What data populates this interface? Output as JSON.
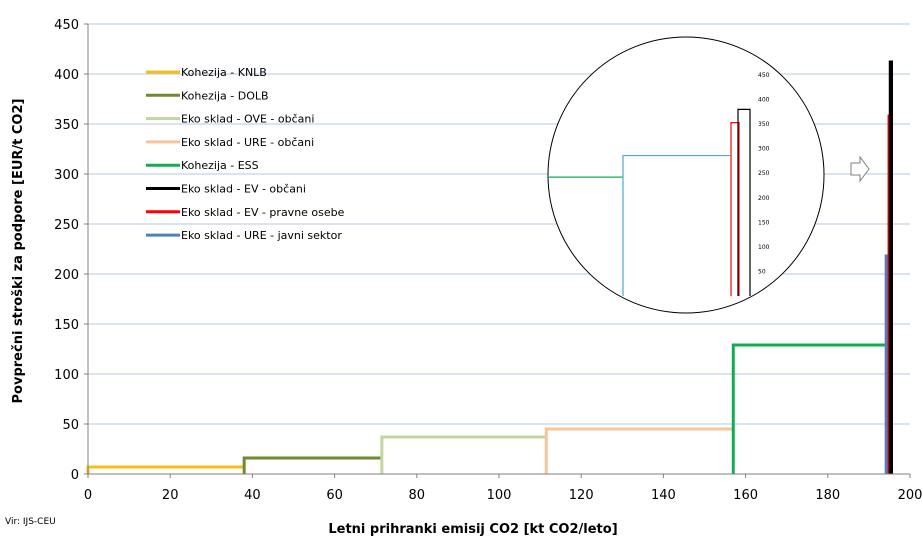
{
  "source_label": "Vir: IJS-CEU",
  "chart_data": {
    "type": "line",
    "title": "",
    "xlabel": "Letni prihranki emisij CO2  [kt CO2/leto]",
    "ylabel": "Povprečni stroški za podpore [EUR/t CO2]",
    "xlim": [
      0,
      200
    ],
    "ylim": [
      0,
      450
    ],
    "x_ticks": [
      0,
      20,
      40,
      60,
      80,
      100,
      120,
      140,
      160,
      180,
      200
    ],
    "y_ticks": [
      0,
      50,
      100,
      150,
      200,
      250,
      300,
      350,
      400,
      450
    ],
    "grid": "horizontal",
    "legend_position": "top-left",
    "series": [
      {
        "name": "Kohezija - KNLB",
        "color": "#f5c016",
        "x_start": 0,
        "x_end": 38,
        "value": 7
      },
      {
        "name": "Kohezija - DOLB",
        "color": "#6f8a30",
        "x_start": 38,
        "x_end": 71.5,
        "value": 16
      },
      {
        "name": "Eko sklad - OVE - občani",
        "color": "#c4d6a0",
        "x_start": 71.5,
        "x_end": 111.5,
        "value": 37
      },
      {
        "name": "Eko sklad - URE - občani",
        "color": "#f9c49a",
        "x_start": 111.5,
        "x_end": 157,
        "value": 45
      },
      {
        "name": "Kohezija - ESS",
        "color": "#12ad4e",
        "x_start": 157,
        "x_end": 194.2,
        "value": 129
      },
      {
        "name": "Eko sklad - EV - občani",
        "color": "#000000",
        "x_start": 195.2,
        "x_end": 195.5,
        "value": 412
      },
      {
        "name": "Eko sklad - EV - pravne osebe",
        "color": "#ff0000",
        "x_start": 194.9,
        "x_end": 195.2,
        "value": 358
      },
      {
        "name": "Eko sklad - URE - javni sektor",
        "color": "#4f81bd",
        "x_start": 194.2,
        "x_end": 194.9,
        "value": 218
      }
    ],
    "inset": {
      "y_ticks": [
        50,
        100,
        150,
        200,
        250,
        300,
        350,
        400,
        450
      ],
      "lines": [
        {
          "series": "Kohezija - ESS",
          "color": "#12ad4e",
          "value": 242
        },
        {
          "series": "Eko sklad - URE - javni sektor",
          "color": "#4bacc6",
          "value": 286
        },
        {
          "series": "Eko sklad - EV - pravne osebe",
          "color": "#ff0000",
          "value": 353
        },
        {
          "series": "Eko sklad - EV - občani",
          "color": "#000000",
          "value": 380
        }
      ]
    }
  }
}
